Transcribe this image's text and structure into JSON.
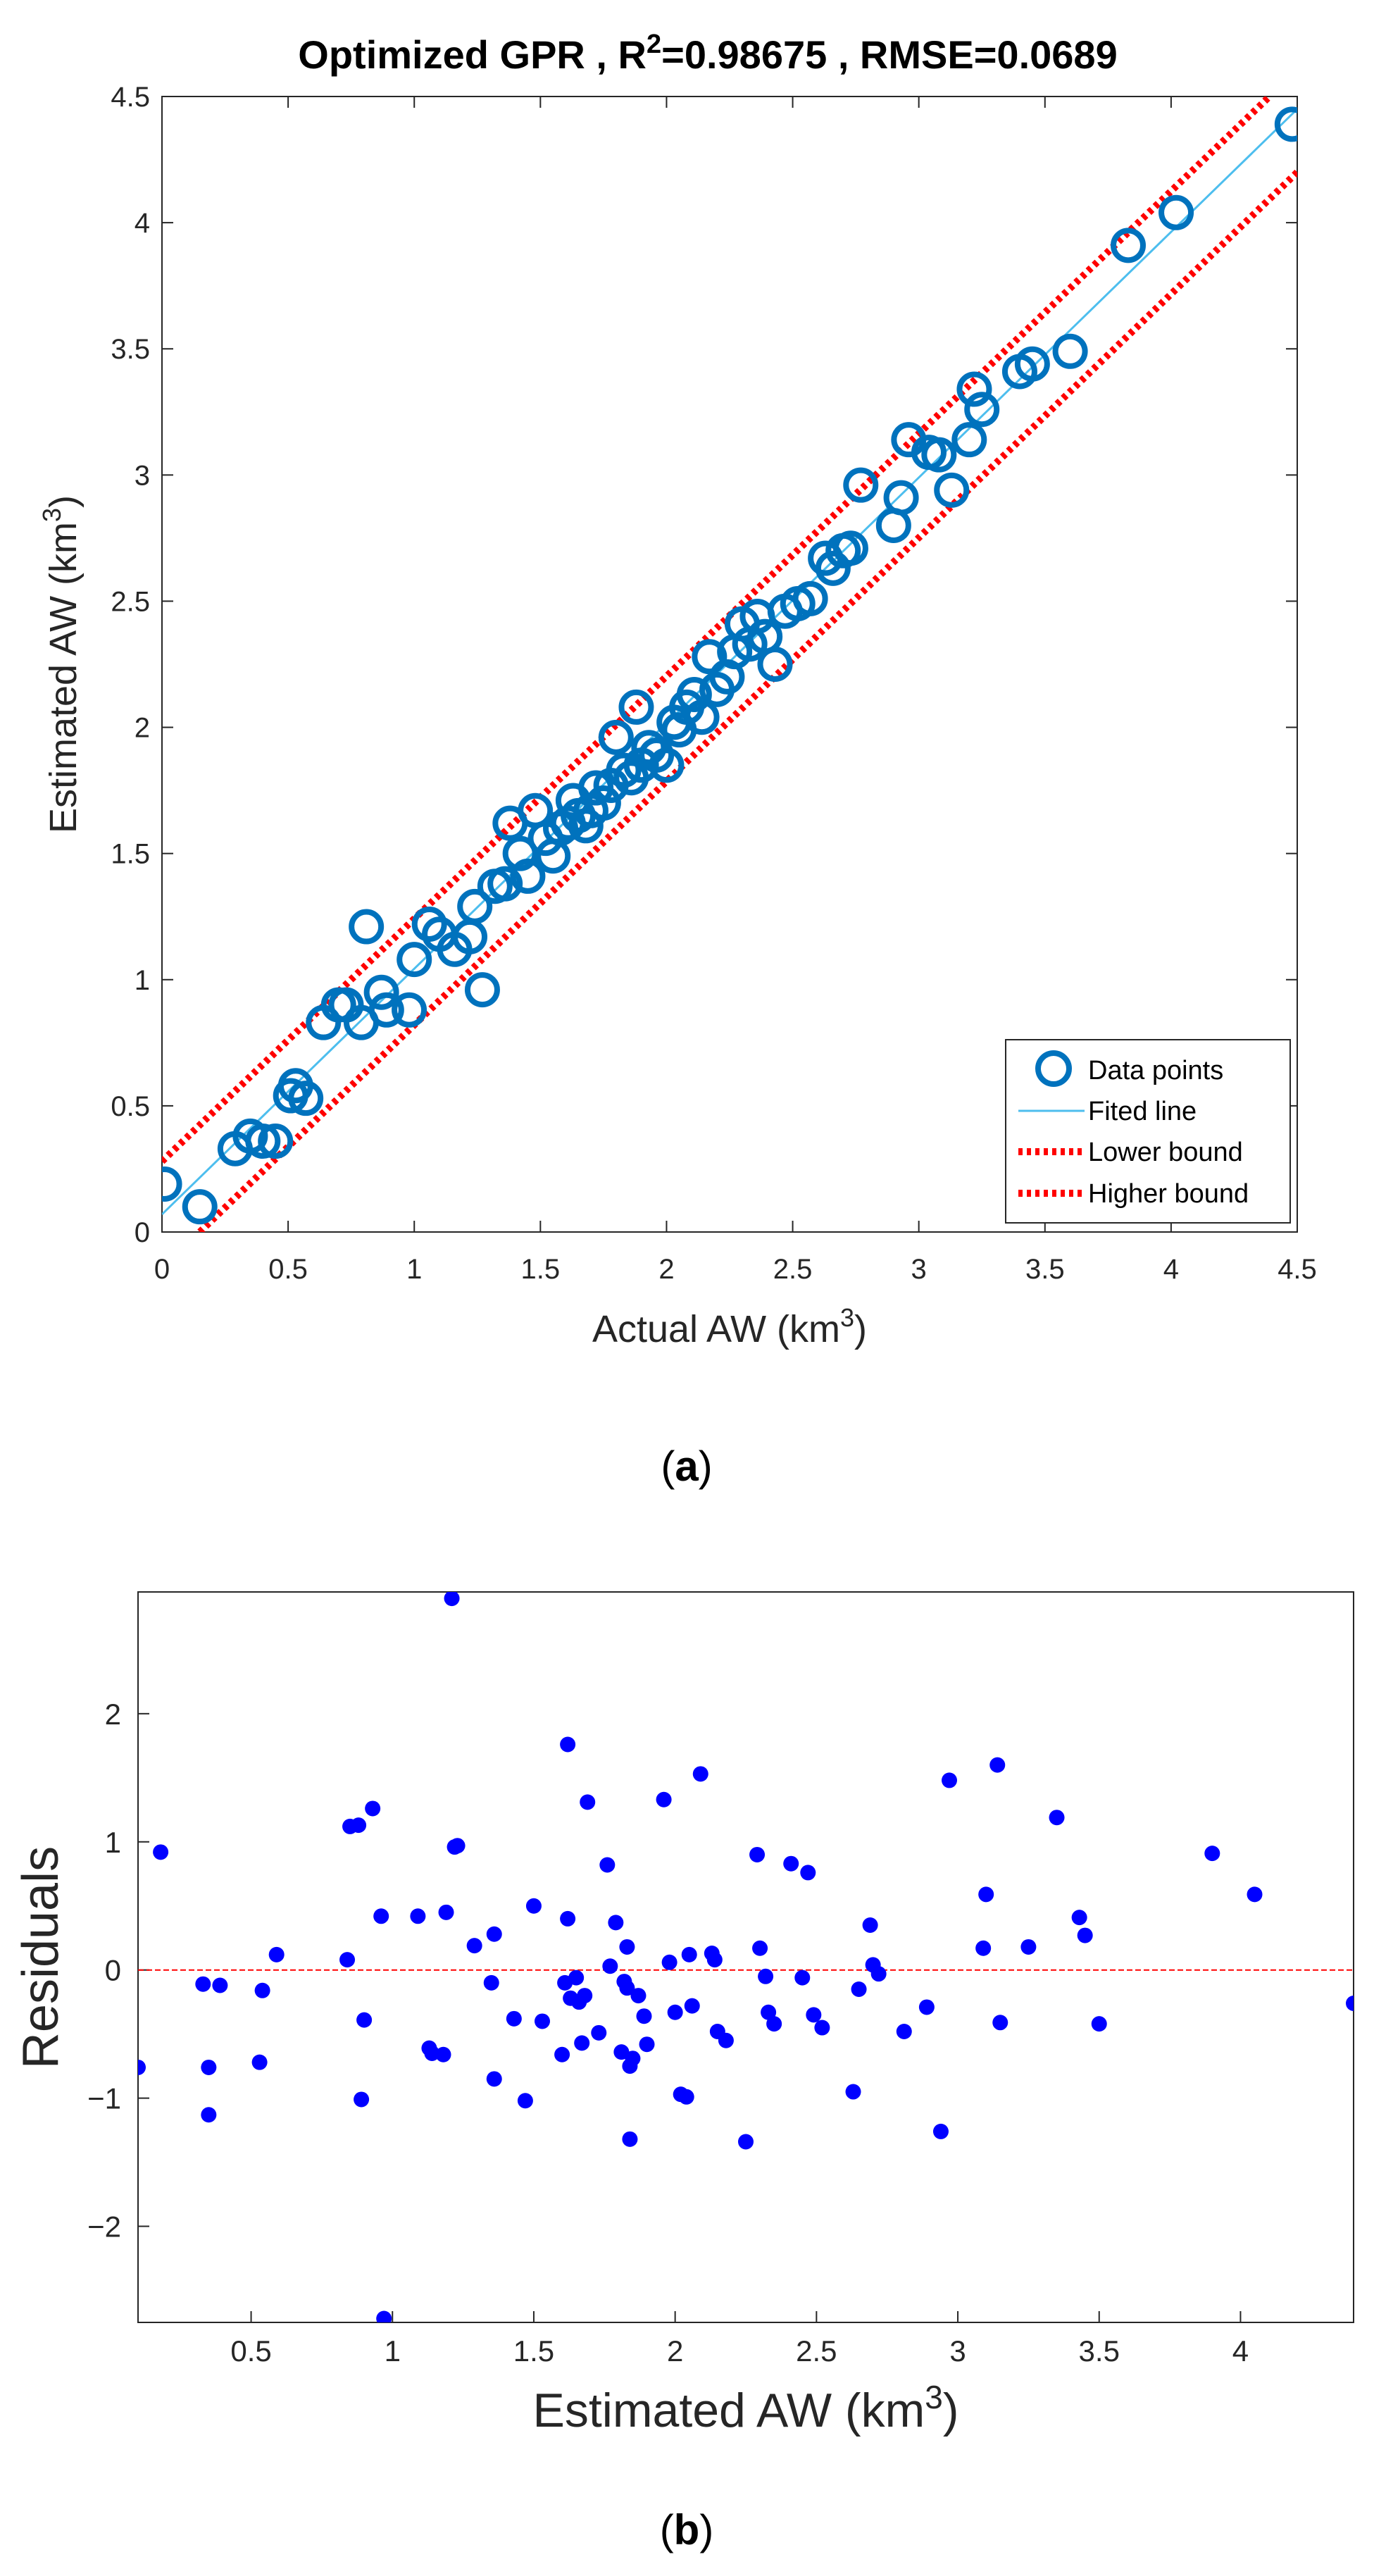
{
  "panel_a": {
    "title_prefix": "Optimized GPR , R",
    "title_sup": "2",
    "title_suffix": "=0.98675 , RMSE=0.0689",
    "xlabel": "Actual AW (km",
    "xlabel_sup": "3",
    "xlabel_end": ")",
    "ylabel": "Estimated AW (km",
    "ylabel_sup": "3",
    "ylabel_end": ")",
    "caption_open": "(",
    "caption_letter": "a",
    "caption_close": ")",
    "legend": [
      "Data points",
      "Fited line",
      "Lower bound",
      "Higher bound"
    ]
  },
  "panel_b": {
    "xlabel": "Estimated AW (km",
    "xlabel_sup": "3",
    "xlabel_end": ")",
    "ylabel": "Residuals",
    "caption_open": "(",
    "caption_letter": "b",
    "caption_close": ")"
  },
  "chart_data": [
    {
      "type": "scatter",
      "title": "Optimized GPR , R²=0.98675 , RMSE=0.0689",
      "xlabel": "Actual AW (km³)",
      "ylabel": "Estimated AW (km³)",
      "xlim": [
        0,
        4.5
      ],
      "ylim": [
        0,
        4.5
      ],
      "xticks": [
        "0",
        "0.5",
        "1",
        "1.5",
        "2",
        "2.5",
        "3",
        "3.5",
        "4",
        "4.5"
      ],
      "yticks": [
        "0",
        "0.5",
        "1",
        "1.5",
        "2",
        "2.5",
        "3",
        "3.5",
        "4",
        "4.5"
      ],
      "legend_position": "bottom-right",
      "series": [
        {
          "name": "Data points",
          "color": "#0072BD",
          "marker": "circle-open",
          "points": [
            [
              0.01,
              0.19
            ],
            [
              0.15,
              0.1
            ],
            [
              0.29,
              0.33
            ],
            [
              0.35,
              0.38
            ],
            [
              0.4,
              0.36
            ],
            [
              0.45,
              0.36
            ],
            [
              0.51,
              0.54
            ],
            [
              0.53,
              0.58
            ],
            [
              0.57,
              0.53
            ],
            [
              0.64,
              0.83
            ],
            [
              0.7,
              0.9
            ],
            [
              0.73,
              0.9
            ],
            [
              0.79,
              0.83
            ],
            [
              0.81,
              1.21
            ],
            [
              0.87,
              0.95
            ],
            [
              0.89,
              0.88
            ],
            [
              0.98,
              0.88
            ],
            [
              1.0,
              1.08
            ],
            [
              1.06,
              1.22
            ],
            [
              1.1,
              1.18
            ],
            [
              1.16,
              1.12
            ],
            [
              1.22,
              1.17
            ],
            [
              1.24,
              1.29
            ],
            [
              1.27,
              0.96
            ],
            [
              1.32,
              1.37
            ],
            [
              1.36,
              1.38
            ],
            [
              1.38,
              1.62
            ],
            [
              1.42,
              1.5
            ],
            [
              1.45,
              1.41
            ],
            [
              1.48,
              1.67
            ],
            [
              1.52,
              1.56
            ],
            [
              1.55,
              1.49
            ],
            [
              1.58,
              1.6
            ],
            [
              1.61,
              1.62
            ],
            [
              1.63,
              1.71
            ],
            [
              1.65,
              1.65
            ],
            [
              1.68,
              1.61
            ],
            [
              1.7,
              1.67
            ],
            [
              1.72,
              1.76
            ],
            [
              1.75,
              1.7
            ],
            [
              1.78,
              1.77
            ],
            [
              1.8,
              1.96
            ],
            [
              1.83,
              1.83
            ],
            [
              1.86,
              1.8
            ],
            [
              1.88,
              2.08
            ],
            [
              1.9,
              1.85
            ],
            [
              1.93,
              1.92
            ],
            [
              1.96,
              1.89
            ],
            [
              2.0,
              1.85
            ],
            [
              2.03,
              2.02
            ],
            [
              2.05,
              1.99
            ],
            [
              2.08,
              2.08
            ],
            [
              2.11,
              2.13
            ],
            [
              2.14,
              2.04
            ],
            [
              2.17,
              2.28
            ],
            [
              2.2,
              2.15
            ],
            [
              2.24,
              2.2
            ],
            [
              2.27,
              2.3
            ],
            [
              2.3,
              2.41
            ],
            [
              2.33,
              2.33
            ],
            [
              2.36,
              2.44
            ],
            [
              2.39,
              2.36
            ],
            [
              2.43,
              2.25
            ],
            [
              2.47,
              2.46
            ],
            [
              2.52,
              2.49
            ],
            [
              2.57,
              2.51
            ],
            [
              2.63,
              2.67
            ],
            [
              2.66,
              2.63
            ],
            [
              2.7,
              2.7
            ],
            [
              2.73,
              2.71
            ],
            [
              2.77,
              2.96
            ],
            [
              2.9,
              2.8
            ],
            [
              2.93,
              2.91
            ],
            [
              2.96,
              3.14
            ],
            [
              3.04,
              3.09
            ],
            [
              3.08,
              3.08
            ],
            [
              3.13,
              2.94
            ],
            [
              3.2,
              3.14
            ],
            [
              3.22,
              3.34
            ],
            [
              3.25,
              3.26
            ],
            [
              3.4,
              3.41
            ],
            [
              3.45,
              3.44
            ],
            [
              3.6,
              3.49
            ],
            [
              3.83,
              3.91
            ],
            [
              4.02,
              4.04
            ],
            [
              4.48,
              4.39
            ]
          ]
        },
        {
          "name": "Fited line",
          "color": "#4DBEEE",
          "style": "solid",
          "points": [
            [
              0,
              0.07
            ],
            [
              4.5,
              4.45
            ]
          ]
        },
        {
          "name": "Lower bound",
          "color": "#FF0000",
          "style": "dotted",
          "points": [
            [
              0.15,
              0
            ],
            [
              4.5,
              4.2
            ]
          ]
        },
        {
          "name": "Higher bound",
          "color": "#FF0000",
          "style": "dotted",
          "points": [
            [
              0,
              0.28
            ],
            [
              4.39,
              4.5
            ]
          ]
        }
      ]
    },
    {
      "type": "scatter",
      "title": "",
      "xlabel": "Estimated AW (km³)",
      "ylabel": "Residuals",
      "xlim": [
        0.1,
        4.4
      ],
      "ylim": [
        -2.75,
        2.95
      ],
      "xticks": [
        "0.5",
        "1",
        "1.5",
        "2",
        "2.5",
        "3",
        "3.5",
        "4"
      ],
      "yticks": [
        "-2",
        "-1",
        "0",
        "1",
        "2"
      ],
      "reference_line": {
        "y": 0,
        "color": "#FF0000",
        "style": "dashed"
      },
      "series": [
        {
          "name": "",
          "color": "#0000FF",
          "marker": "dot",
          "points": [
            [
              0.1,
              -0.76
            ],
            [
              0.18,
              0.92
            ],
            [
              0.33,
              -0.11
            ],
            [
              0.35,
              -0.76
            ],
            [
              0.35,
              -1.13
            ],
            [
              0.39,
              -0.12
            ],
            [
              0.53,
              -0.72
            ],
            [
              0.54,
              -0.16
            ],
            [
              0.59,
              0.12
            ],
            [
              0.84,
              0.08
            ],
            [
              0.85,
              1.12
            ],
            [
              0.88,
              1.13
            ],
            [
              0.89,
              -1.01
            ],
            [
              0.9,
              -0.39
            ],
            [
              0.93,
              1.26
            ],
            [
              0.96,
              0.42
            ],
            [
              0.97,
              -2.72
            ],
            [
              1.09,
              0.42
            ],
            [
              1.13,
              -0.61
            ],
            [
              1.14,
              -0.65
            ],
            [
              1.18,
              -0.66
            ],
            [
              1.19,
              0.45
            ],
            [
              1.21,
              2.9
            ],
            [
              1.22,
              0.96
            ],
            [
              1.23,
              0.97
            ],
            [
              1.29,
              0.19
            ],
            [
              1.35,
              -0.1
            ],
            [
              1.36,
              0.28
            ],
            [
              1.36,
              -0.85
            ],
            [
              1.43,
              -0.38
            ],
            [
              1.47,
              -1.02
            ],
            [
              1.5,
              0.5
            ],
            [
              1.53,
              -0.4
            ],
            [
              1.6,
              -0.66
            ],
            [
              1.61,
              -0.1
            ],
            [
              1.62,
              0.4
            ],
            [
              1.62,
              1.76
            ],
            [
              1.63,
              -0.22
            ],
            [
              1.65,
              -0.06
            ],
            [
              1.66,
              -0.25
            ],
            [
              1.67,
              -0.57
            ],
            [
              1.68,
              -0.2
            ],
            [
              1.69,
              1.31
            ],
            [
              1.73,
              -0.49
            ],
            [
              1.76,
              0.82
            ],
            [
              1.77,
              0.03
            ],
            [
              1.79,
              0.37
            ],
            [
              1.81,
              -0.64
            ],
            [
              1.82,
              -0.09
            ],
            [
              1.83,
              -0.14
            ],
            [
              1.83,
              0.18
            ],
            [
              1.84,
              -0.75
            ],
            [
              1.84,
              -1.32
            ],
            [
              1.85,
              -0.69
            ],
            [
              1.87,
              -0.2
            ],
            [
              1.89,
              -0.36
            ],
            [
              1.9,
              -0.58
            ],
            [
              1.96,
              1.33
            ],
            [
              1.98,
              0.06
            ],
            [
              2.0,
              -0.33
            ],
            [
              2.02,
              -0.97
            ],
            [
              2.04,
              -0.99
            ],
            [
              2.05,
              0.12
            ],
            [
              2.06,
              -0.28
            ],
            [
              2.09,
              1.53
            ],
            [
              2.13,
              0.13
            ],
            [
              2.14,
              0.08
            ],
            [
              2.15,
              -0.48
            ],
            [
              2.18,
              -0.55
            ],
            [
              2.25,
              -1.34
            ],
            [
              2.29,
              0.9
            ],
            [
              2.3,
              0.17
            ],
            [
              2.32,
              -0.05
            ],
            [
              2.33,
              -0.33
            ],
            [
              2.35,
              -0.42
            ],
            [
              2.41,
              0.83
            ],
            [
              2.45,
              -0.06
            ],
            [
              2.47,
              0.76
            ],
            [
              2.49,
              -0.35
            ],
            [
              2.52,
              -0.45
            ],
            [
              2.63,
              -0.95
            ],
            [
              2.65,
              -0.15
            ],
            [
              2.69,
              0.35
            ],
            [
              2.7,
              0.04
            ],
            [
              2.72,
              -0.03
            ],
            [
              2.81,
              -0.48
            ],
            [
              2.89,
              -0.29
            ],
            [
              2.94,
              -1.26
            ],
            [
              2.97,
              1.48
            ],
            [
              3.09,
              0.17
            ],
            [
              3.1,
              0.59
            ],
            [
              3.14,
              1.6
            ],
            [
              3.15,
              -0.41
            ],
            [
              3.25,
              0.18
            ],
            [
              3.35,
              1.19
            ],
            [
              3.43,
              0.41
            ],
            [
              3.45,
              0.27
            ],
            [
              3.5,
              -0.42
            ],
            [
              3.9,
              0.91
            ],
            [
              4.05,
              0.59
            ],
            [
              4.4,
              -0.26
            ]
          ]
        }
      ]
    }
  ]
}
